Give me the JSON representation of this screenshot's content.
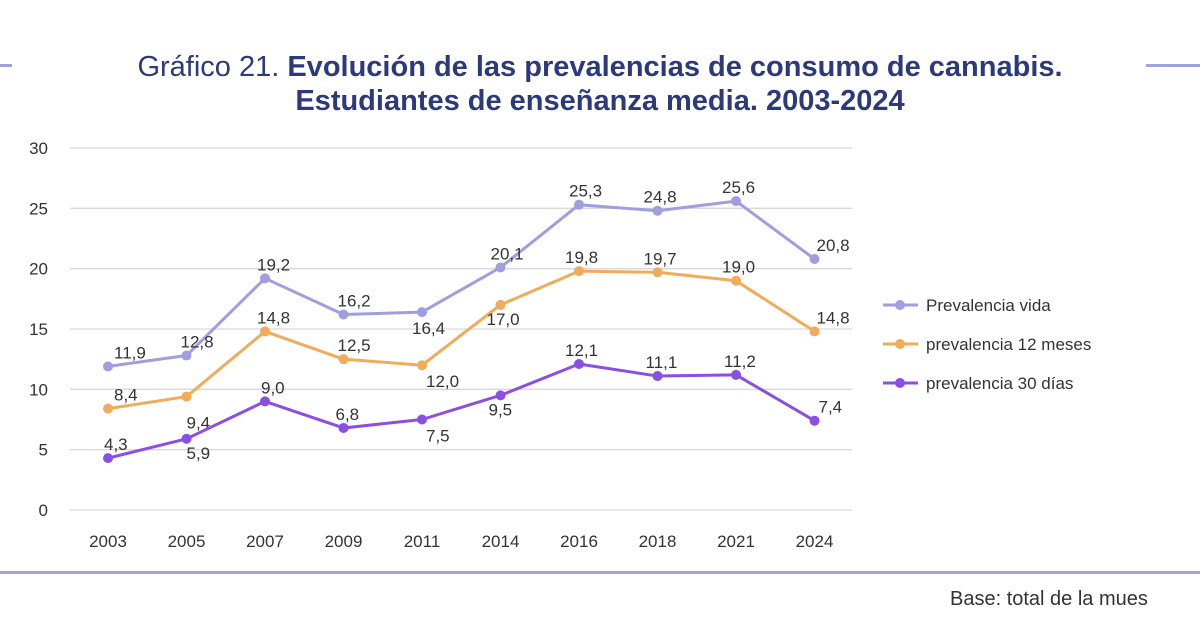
{
  "chart_data": {
    "type": "line",
    "title_prefix": "Gráfico 21.",
    "title_line1": "Evolución de las prevalencias de consumo de cannabis.",
    "title_line2": "Estudiantes de enseñanza media. 2003-2024",
    "categories": [
      "2003",
      "2005",
      "2007",
      "2009",
      "2011",
      "2014",
      "2016",
      "2018",
      "2021",
      "2024"
    ],
    "y_ticks": [
      "0",
      "5",
      "10",
      "15",
      "20",
      "25",
      "30"
    ],
    "ylim": [
      0,
      30
    ],
    "grid": true,
    "legend_position": "right",
    "series": [
      {
        "name": "Prevalencia vida",
        "color": "#a09ee0",
        "values": [
          11.9,
          12.8,
          19.2,
          16.2,
          16.4,
          20.1,
          25.3,
          24.8,
          25.6,
          20.8
        ],
        "labels": [
          "11,9",
          "12,8",
          "19,2",
          "16,2",
          "16,4",
          "20,1",
          "25,3",
          "24,8",
          "25,6",
          "20,8"
        ]
      },
      {
        "name": "prevalencia 12 meses",
        "color": "#f0ac5a",
        "values": [
          8.4,
          9.4,
          14.8,
          12.5,
          12.0,
          17.0,
          19.8,
          19.7,
          19.0,
          14.8
        ],
        "labels": [
          "8,4",
          "9,4",
          "14,8",
          "12,5",
          "12,0",
          "17,0",
          "19,8",
          "19,7",
          "19,0",
          "14,8"
        ]
      },
      {
        "name": "prevalencia 30 días",
        "color": "#8a4fe3",
        "values": [
          4.3,
          5.9,
          9.0,
          6.8,
          7.5,
          9.5,
          12.1,
          11.1,
          11.2,
          7.4
        ],
        "labels": [
          "4,3",
          "5,9",
          "9,0",
          "6,8",
          "7,5",
          "9,5",
          "12,1",
          "11,1",
          "11,2",
          "7,4"
        ]
      }
    ]
  },
  "footer": "Base: total de la mues"
}
